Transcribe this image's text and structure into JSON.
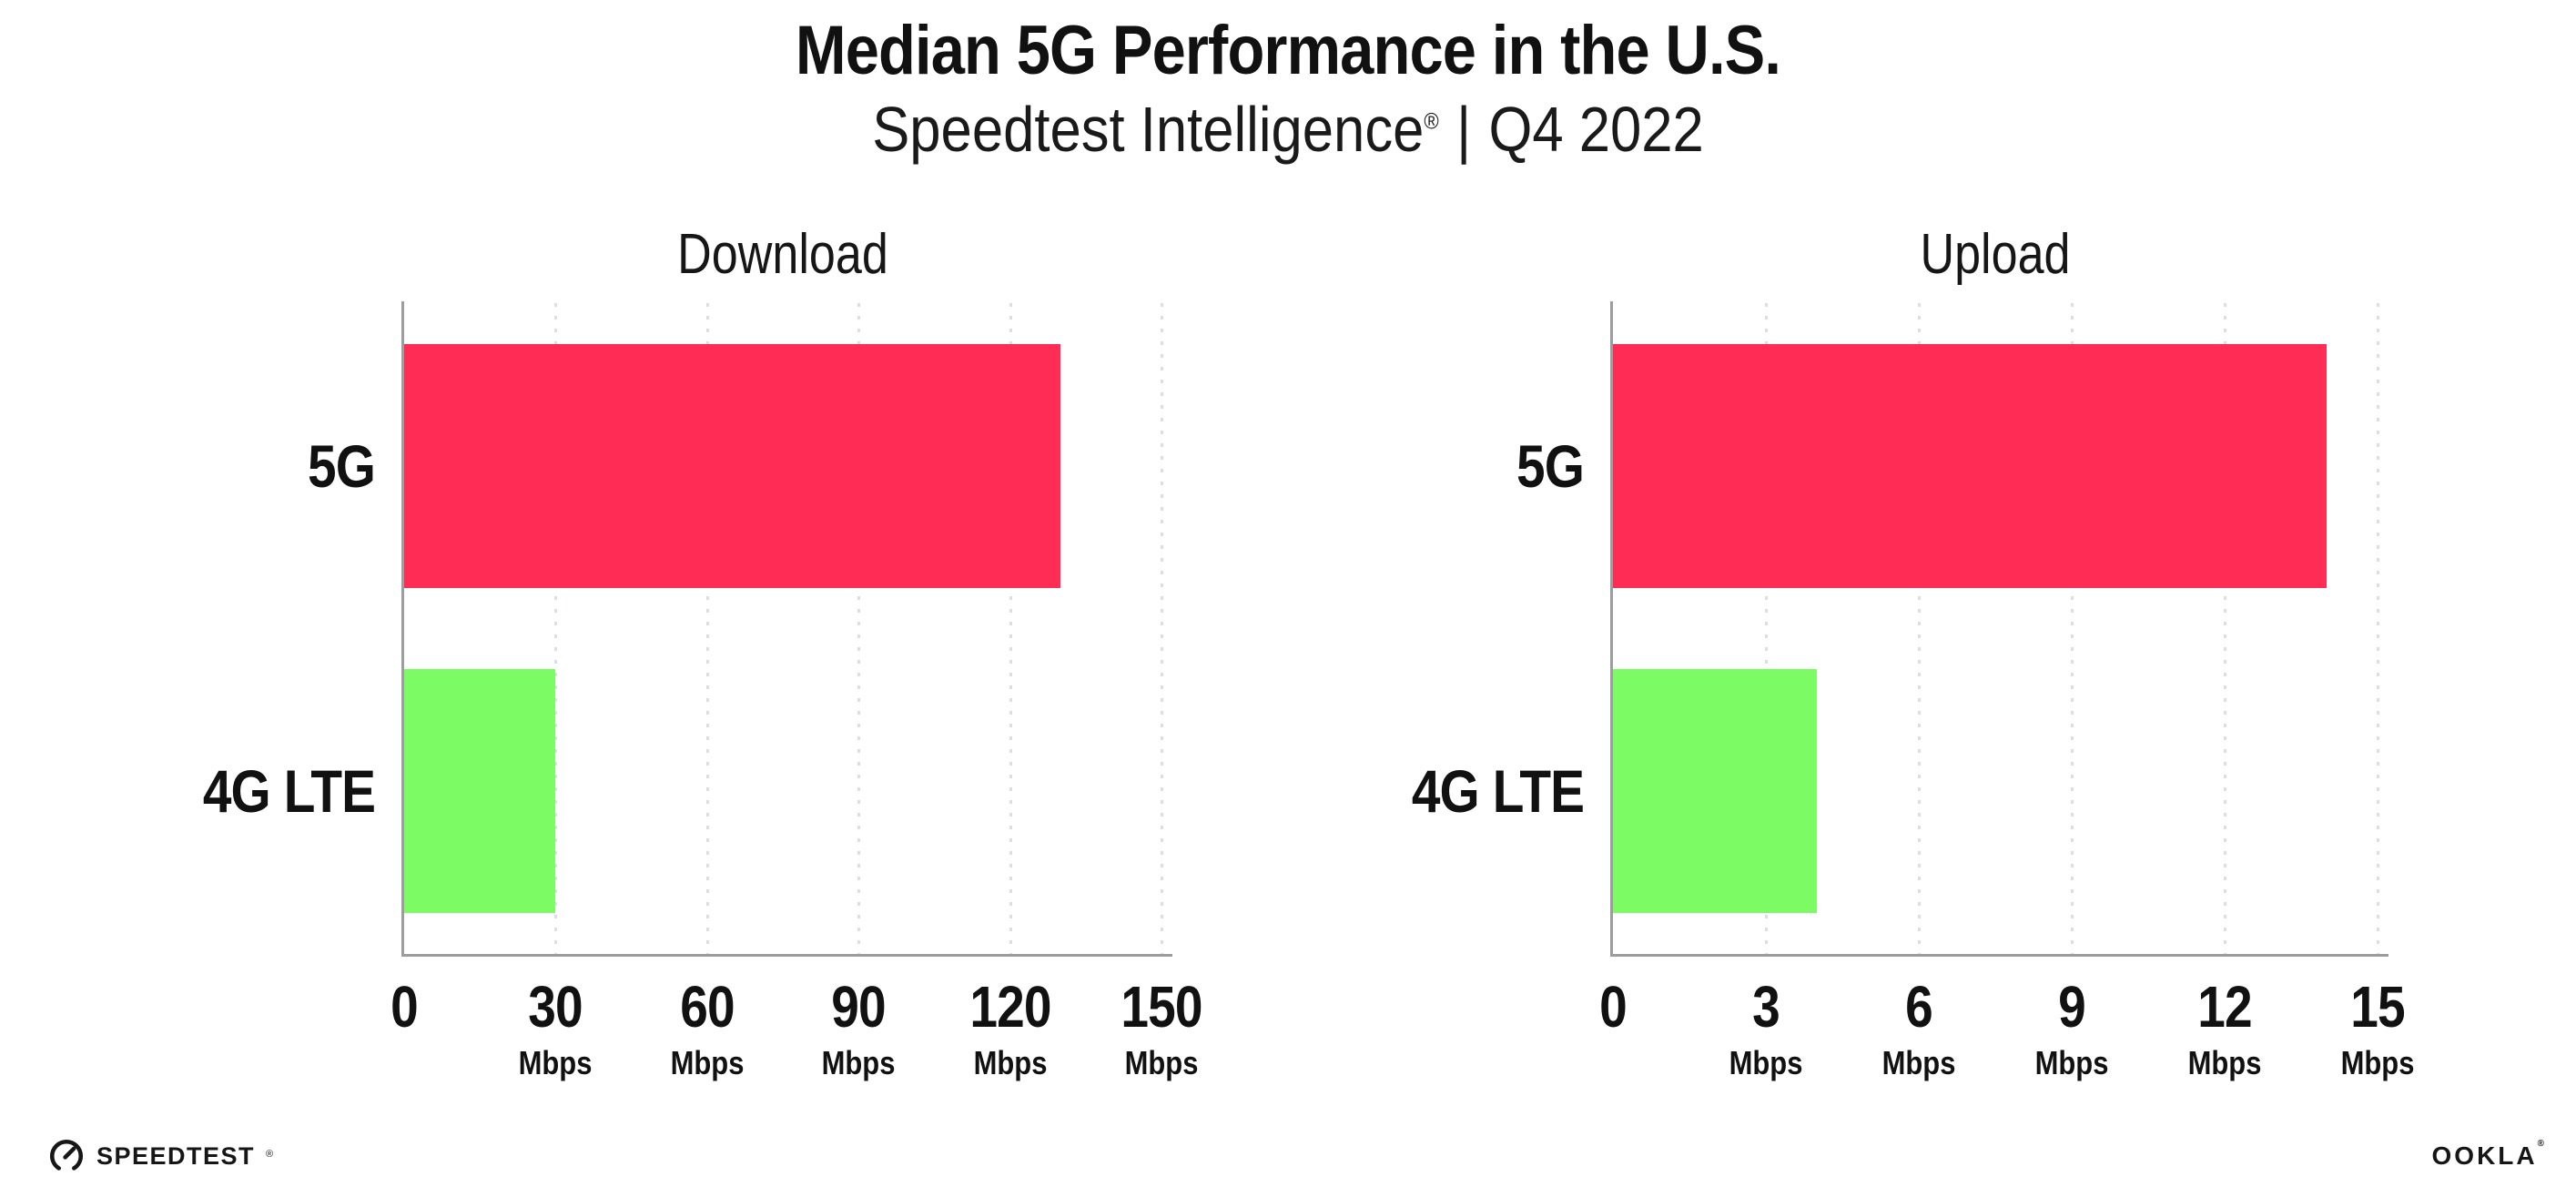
{
  "header": {
    "title": "Median 5G Performance in the U.S.",
    "subtitle_product": "Speedtest Intelligence",
    "subtitle_mark": "®",
    "subtitle_separator": "|",
    "subtitle_period": "Q4 2022"
  },
  "footer": {
    "speedtest_label": "SPEEDTEST",
    "speedtest_mark": "®",
    "speedtest_icon": "speedtest-gauge-icon",
    "ookla_label": "OOKLA",
    "ookla_mark": "®"
  },
  "colors": {
    "bar_5g": "#FF2D55",
    "bar_4g_lte": "#7DFB64",
    "axis": "#9D9D9D",
    "gridline": "#DBDDE9",
    "text": "#111111",
    "background": "#FFFFFF"
  },
  "chart_data": [
    {
      "type": "bar",
      "orientation": "horizontal",
      "title": "Download",
      "categories": [
        "5G",
        "4G LTE"
      ],
      "values": [
        130,
        30
      ],
      "unit": "Mbps",
      "xlabel": "",
      "ylabel": "",
      "xlim": [
        0,
        150
      ],
      "xticks": [
        0,
        30,
        60,
        90,
        120,
        150
      ],
      "bar_colors": [
        "#FF2D55",
        "#7DFB64"
      ],
      "grid": "vertical-dotted",
      "legend": "none"
    },
    {
      "type": "bar",
      "orientation": "horizontal",
      "title": "Upload",
      "categories": [
        "5G",
        "4G LTE"
      ],
      "values": [
        14,
        4
      ],
      "unit": "Mbps",
      "xlabel": "",
      "ylabel": "",
      "xlim": [
        0,
        15
      ],
      "xticks": [
        0,
        3,
        6,
        9,
        12,
        15
      ],
      "bar_colors": [
        "#FF2D55",
        "#7DFB64"
      ],
      "grid": "vertical-dotted",
      "legend": "none"
    }
  ]
}
